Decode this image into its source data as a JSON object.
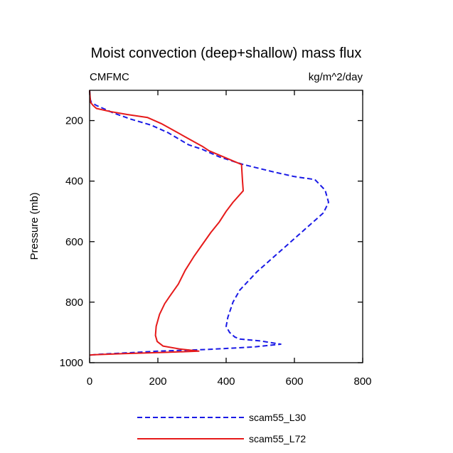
{
  "chart_data": {
    "type": "line",
    "title": "Moist convection (deep+shallow) mass flux",
    "left_subtitle": "CMFMC",
    "right_subtitle": "kg/m^2/day",
    "xlabel": "",
    "ylabel": "Pressure (mb)",
    "xlim": [
      0,
      800
    ],
    "ylim": [
      100,
      1000
    ],
    "y_inverted": true,
    "x_ticks": [
      0,
      200,
      400,
      600,
      800
    ],
    "y_ticks": [
      200,
      400,
      600,
      800,
      1000
    ],
    "grid": false,
    "legend_position": "bottom",
    "series": [
      {
        "name": "scam55_L30",
        "color": "#1a1ae6",
        "dash": "dashed",
        "points": [
          [
            0,
            100
          ],
          [
            2,
            130
          ],
          [
            5,
            140
          ],
          [
            20,
            150
          ],
          [
            40,
            160
          ],
          [
            70,
            175
          ],
          [
            120,
            195
          ],
          [
            180,
            215
          ],
          [
            230,
            240
          ],
          [
            260,
            260
          ],
          [
            290,
            280
          ],
          [
            330,
            295
          ],
          [
            380,
            320
          ],
          [
            450,
            345
          ],
          [
            540,
            370
          ],
          [
            600,
            385
          ],
          [
            660,
            395
          ],
          [
            690,
            430
          ],
          [
            700,
            470
          ],
          [
            685,
            505
          ],
          [
            650,
            540
          ],
          [
            610,
            580
          ],
          [
            570,
            620
          ],
          [
            530,
            660
          ],
          [
            490,
            700
          ],
          [
            465,
            730
          ],
          [
            440,
            760
          ],
          [
            420,
            800
          ],
          [
            405,
            850
          ],
          [
            400,
            880
          ],
          [
            410,
            900
          ],
          [
            425,
            915
          ],
          [
            440,
            922
          ],
          [
            500,
            928
          ],
          [
            560,
            939
          ],
          [
            480,
            948
          ],
          [
            350,
            956
          ],
          [
            200,
            962
          ],
          [
            100,
            968
          ],
          [
            30,
            972
          ],
          [
            0,
            975
          ]
        ]
      },
      {
        "name": "scam55_L72",
        "color": "#e61a1a",
        "dash": "solid",
        "points": [
          [
            0,
            100
          ],
          [
            2,
            130
          ],
          [
            3,
            140
          ],
          [
            10,
            150
          ],
          [
            20,
            160
          ],
          [
            60,
            170
          ],
          [
            110,
            180
          ],
          [
            170,
            190
          ],
          [
            210,
            210
          ],
          [
            250,
            235
          ],
          [
            290,
            260
          ],
          [
            330,
            285
          ],
          [
            350,
            300
          ],
          [
            445,
            345
          ],
          [
            448,
            400
          ],
          [
            450,
            432
          ],
          [
            420,
            470
          ],
          [
            400,
            500
          ],
          [
            380,
            535
          ],
          [
            355,
            570
          ],
          [
            330,
            610
          ],
          [
            305,
            650
          ],
          [
            280,
            695
          ],
          [
            260,
            740
          ],
          [
            235,
            780
          ],
          [
            220,
            805
          ],
          [
            205,
            840
          ],
          [
            195,
            880
          ],
          [
            193,
            910
          ],
          [
            198,
            930
          ],
          [
            215,
            945
          ],
          [
            265,
            955
          ],
          [
            320,
            962
          ],
          [
            220,
            966
          ],
          [
            100,
            970
          ],
          [
            10,
            974
          ],
          [
            0,
            975
          ]
        ]
      }
    ]
  }
}
